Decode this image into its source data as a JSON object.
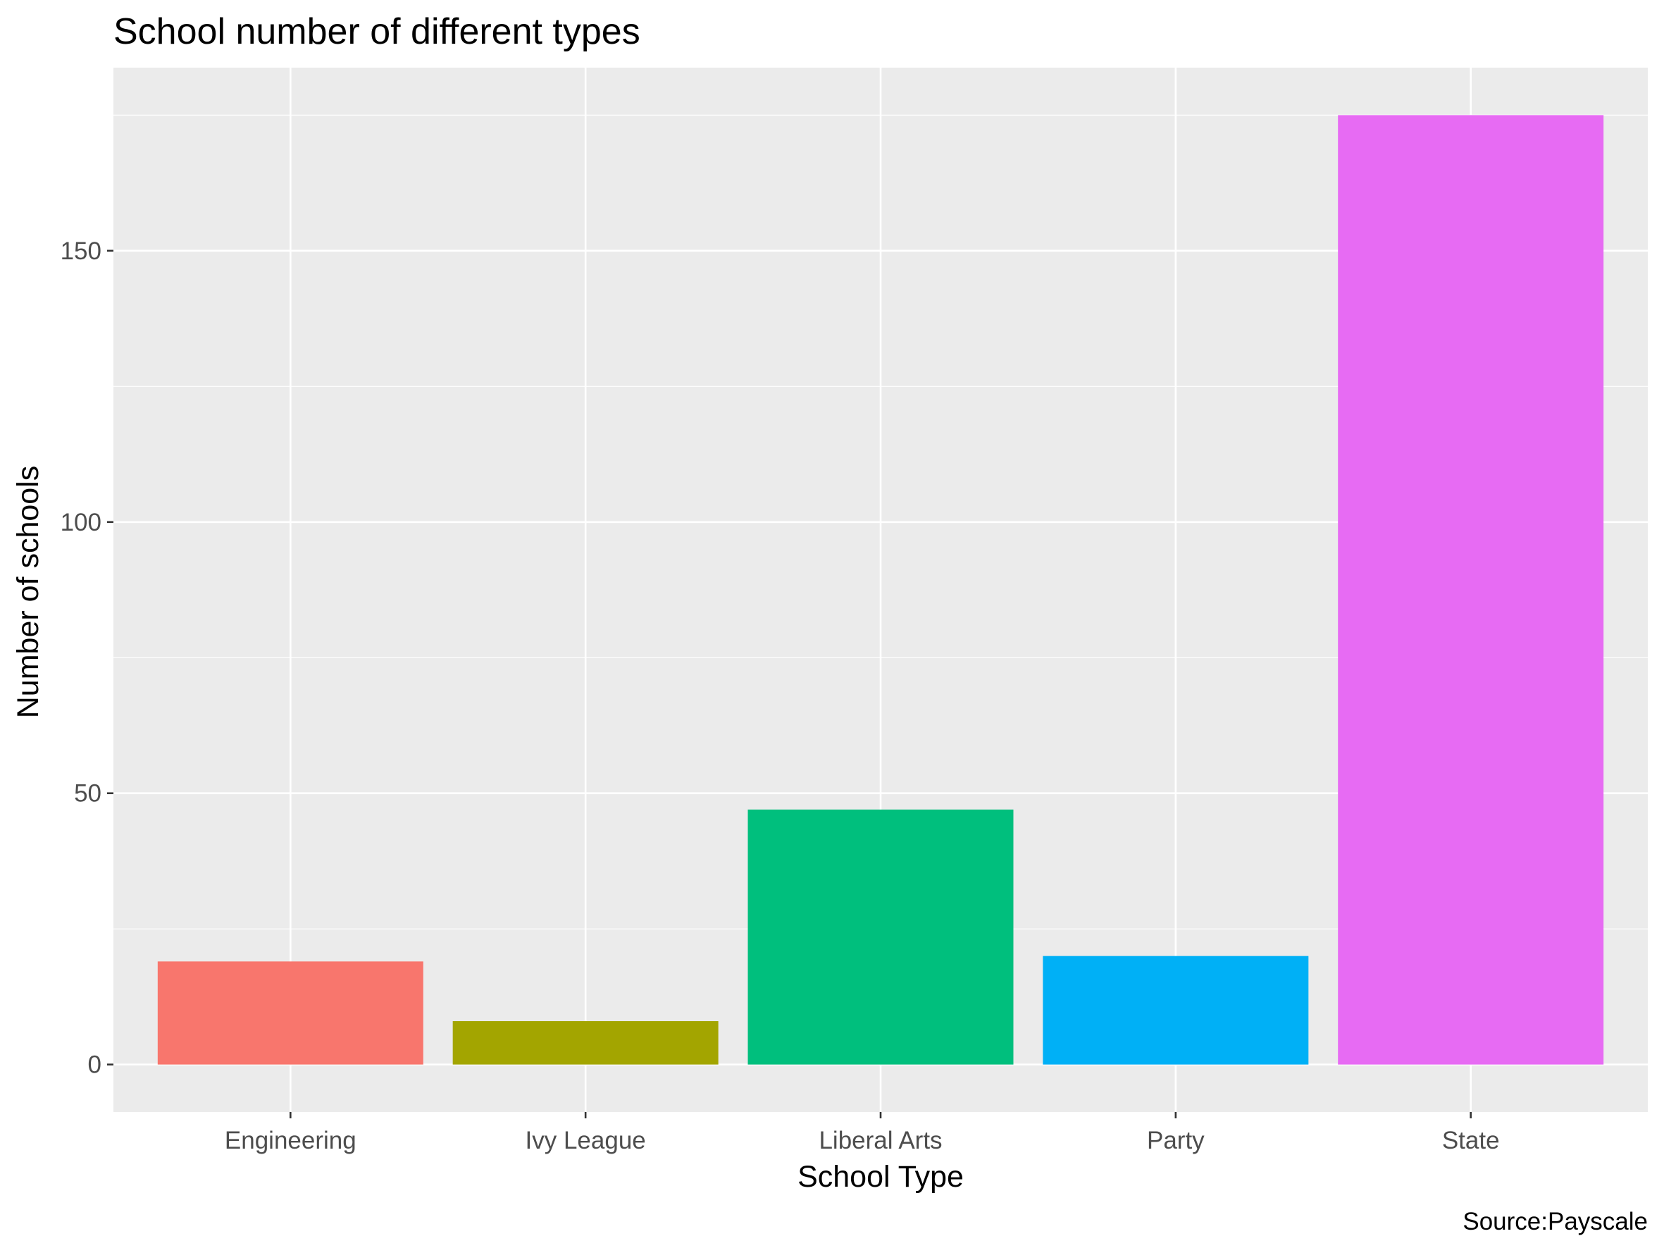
{
  "chart_data": {
    "type": "bar",
    "title": "School number of different types",
    "xlabel": "School Type",
    "ylabel": "Number of schools",
    "caption": "Source:Payscale",
    "categories": [
      "Engineering",
      "Ivy League",
      "Liberal Arts",
      "Party",
      "State"
    ],
    "values": [
      19,
      8,
      47,
      20,
      175
    ],
    "colors": [
      "#F8766D",
      "#A3A500",
      "#00BF7D",
      "#00B0F6",
      "#E76BF3"
    ],
    "yticks": [
      0,
      50,
      100,
      150
    ],
    "yticks_labels": [
      "0",
      "50",
      "100",
      "150"
    ],
    "ylim": [
      -8.75,
      183.75
    ],
    "panel_background": "#EBEBEB",
    "grid": true,
    "legend": "none"
  }
}
